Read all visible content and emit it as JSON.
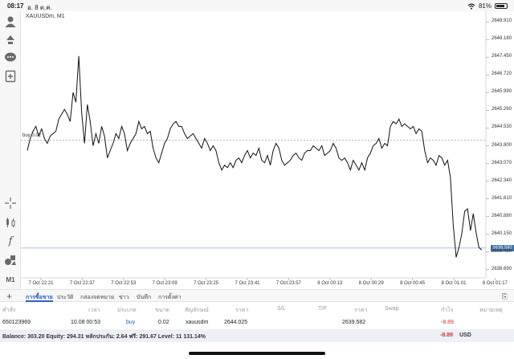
{
  "status_bar": {
    "time": "08:17",
    "date": "อ. 8 ต.ค.",
    "battery": "81%",
    "battery_level": 0.81
  },
  "chart": {
    "symbol_label": "XAUUSDm, M1",
    "buy_line_label": "buy 0.02",
    "buy_price": 2644.025,
    "current_price": 2639.582,
    "current_price_label": "2639.582",
    "line_color": "#111111",
    "tag_color": "#3b6fa8"
  },
  "chart_data": {
    "type": "line",
    "y_ticks": [
      "2648.910",
      "2648.180",
      "2647.450",
      "2646.720",
      "2645.990",
      "2645.260",
      "2644.530",
      "2643.800",
      "2643.070",
      "2642.340",
      "2641.610",
      "2640.880",
      "2640.150",
      "2639.420",
      "2638.690"
    ],
    "x_ticks": [
      "7 Oct 22:21",
      "7 Oct 22:37",
      "7 Oct 22:53",
      "7 Oct 23:09",
      "7 Oct 23:25",
      "7 Oct 23:41",
      "7 Oct 23:57",
      "8 Oct 00:13",
      "8 Oct 00:29",
      "8 Oct 00:45",
      "8 Oct 01:01",
      "8 Oct 01:17"
    ],
    "ylim": [
      2638.35,
      2649.35
    ],
    "series": [
      {
        "values": [
          2643.6,
          2644.1,
          2644.4,
          2644.6,
          2644.2,
          2644.5,
          2644.1,
          2643.9,
          2644.2,
          2644.3,
          2644.4,
          2644.9,
          2645.1,
          2645.3,
          2645.1,
          2644.8,
          2646.0,
          2645.6,
          2647.5,
          2645.2,
          2643.9,
          2645.5,
          2644.8,
          2643.8,
          2644.3,
          2643.9,
          2644.6,
          2644.2,
          2643.3,
          2643.6,
          2643.9,
          2644.3,
          2644.1,
          2644.6,
          2644.3,
          2643.6,
          2643.9,
          2644.1,
          2644.3,
          2644.8,
          2644.5,
          2644.6,
          2644.3,
          2644.4,
          2643.7,
          2643.3,
          2643.1,
          2643.5,
          2643.9,
          2644.1,
          2644.5,
          2644.7,
          2644.8,
          2644.6,
          2644.6,
          2644.3,
          2644.1,
          2644.2,
          2644.3,
          2644.1,
          2643.9,
          2643.7,
          2644.1,
          2643.9,
          2643.6,
          2643.8,
          2643.6,
          2643.1,
          2642.8,
          2643.0,
          2642.9,
          2643.1,
          2642.9,
          2643.2,
          2643.3,
          2643.1,
          2643.4,
          2643.6,
          2643.3,
          2643.5,
          2643.4,
          2643.7,
          2643.2,
          2643.1,
          2643.4,
          2643.0,
          2643.6,
          2643.9,
          2643.7,
          2643.2,
          2643.0,
          2643.1,
          2643.2,
          2643.4,
          2643.5,
          2643.3,
          2643.2,
          2643.5,
          2643.6,
          2643.6,
          2643.8,
          2643.7,
          2643.6,
          2643.8,
          2643.4,
          2643.5,
          2643.6,
          2643.9,
          2643.7,
          2643.3,
          2643.2,
          2643.3,
          2643.1,
          2642.8,
          2643.2,
          2643.0,
          2642.8,
          2643.1,
          2642.8,
          2643.3,
          2643.5,
          2643.8,
          2643.9,
          2644.1,
          2643.7,
          2643.9,
          2643.8,
          2644.6,
          2644.8,
          2644.7,
          2644.9,
          2644.6,
          2644.7,
          2644.6,
          2644.5,
          2644.6,
          2644.3,
          2644.5,
          2644.4,
          2643.6,
          2643.1,
          2643.3,
          2643.2,
          2643.0,
          2643.4,
          2643.3,
          2643.0,
          2643.2,
          2642.5,
          2640.5,
          2639.2,
          2639.6,
          2640.2,
          2641.1,
          2641.2,
          2640.3,
          2641.0,
          2640.2,
          2639.6,
          2639.5
        ]
      }
    ],
    "grid": false,
    "legend": "none"
  },
  "toolbar": {
    "items": [
      "person-icon",
      "trade-arrows-icon",
      "chat-icon",
      "new-order-icon",
      "crosshair-icon",
      "candles-icon",
      "function-icon",
      "objects-icon"
    ],
    "timeframe_label": "M1"
  },
  "tabs": {
    "items": [
      "การซื้อขาย",
      "ประวัติ",
      "กล่องจดหมาย",
      "ข่าว",
      "บันทึก",
      "การตั้งค่า"
    ]
  },
  "table": {
    "headers": [
      "คำสั่ง",
      "เวลา",
      "ประเภท",
      "ขนาด",
      "สัญลักษณ์",
      "ราคา",
      "S/L",
      "T/P",
      "ราคา",
      "Swap",
      "กำไร",
      "หมายเหตุ"
    ],
    "row": {
      "order": "650123969",
      "time": "10.08 00:53",
      "type": "buy",
      "size": "0.02",
      "symbol": "xauusdm",
      "open_price": "2644.025",
      "current_price": "2639.582",
      "profit": "-8.89"
    }
  },
  "balance_bar": {
    "text": "Balance: 303.20 Equity: 294.31 หลักประกัน: 2.64 ฟรี: 291.67 Level: 11 131.14%",
    "profit": "-8.89",
    "currency": "USD"
  },
  "colors": {
    "accent": "#2a62c8",
    "negative": "#d0302f"
  }
}
